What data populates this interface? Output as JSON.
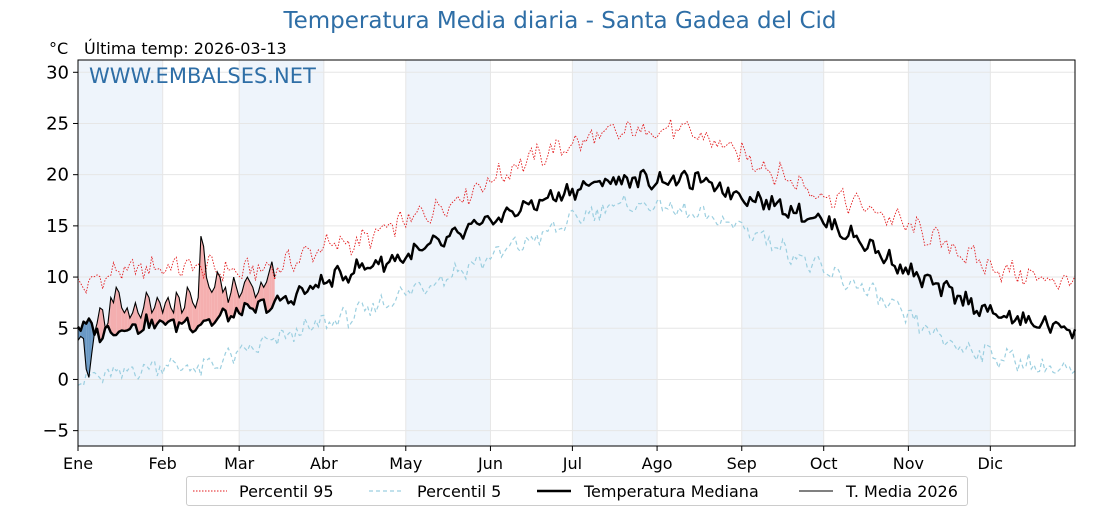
{
  "header": {
    "title": "Temperatura Media diaria - Santa Gadea del Cid",
    "unit": "°C",
    "last_temp_label": "Última temp:",
    "last_temp_date": "2026-03-13",
    "watermark": "WWW.EMBALSES.NET"
  },
  "colors": {
    "title": "#2e6ea6",
    "p95": "#e31a1c",
    "p5": "#9ccfe0",
    "median": "#000000",
    "current": "#000000",
    "above_fill": "#f4a6a6",
    "below_fill": "#5b8fbf",
    "month_band": "#eef4fb"
  },
  "chart_data": {
    "type": "line",
    "title": "Temperatura Media diaria - Santa Gadea del Cid",
    "ylabel": "°C",
    "ylim": [
      -6.5,
      31.2
    ],
    "yticks": [
      -5,
      0,
      5,
      10,
      15,
      20,
      25,
      30
    ],
    "xlim": [
      1,
      366
    ],
    "month_labels": [
      "Ene",
      "Feb",
      "Mar",
      "Abr",
      "May",
      "Jun",
      "Jul",
      "Ago",
      "Sep",
      "Oct",
      "Nov",
      "Dic"
    ],
    "month_start_days": [
      1,
      32,
      60,
      91,
      121,
      152,
      182,
      213,
      244,
      274,
      305,
      335
    ],
    "shaded_months": [
      0,
      2,
      4,
      6,
      8,
      10
    ],
    "grid": true,
    "legend_position": "bottom",
    "series": [
      {
        "name": "Percentil 95",
        "style": "dotted",
        "anchors": [
          [
            1,
            9.0
          ],
          [
            15,
            10.5
          ],
          [
            32,
            11.0
          ],
          [
            46,
            11.0
          ],
          [
            60,
            10.5
          ],
          [
            75,
            11.0
          ],
          [
            91,
            13.0
          ],
          [
            105,
            13.5
          ],
          [
            121,
            15.5
          ],
          [
            135,
            17.0
          ],
          [
            152,
            19.5
          ],
          [
            166,
            21.5
          ],
          [
            182,
            23.0
          ],
          [
            196,
            24.0
          ],
          [
            213,
            24.5
          ],
          [
            227,
            24.0
          ],
          [
            244,
            22.0
          ],
          [
            258,
            20.0
          ],
          [
            274,
            18.0
          ],
          [
            288,
            17.0
          ],
          [
            305,
            15.0
          ],
          [
            320,
            13.0
          ],
          [
            335,
            11.0
          ],
          [
            350,
            10.0
          ],
          [
            366,
            9.5
          ]
        ]
      },
      {
        "name": "Percentil 5",
        "style": "dashed",
        "anchors": [
          [
            1,
            0.0
          ],
          [
            15,
            0.5
          ],
          [
            32,
            1.5
          ],
          [
            46,
            1.0
          ],
          [
            60,
            2.5
          ],
          [
            75,
            4.0
          ],
          [
            91,
            5.5
          ],
          [
            105,
            6.5
          ],
          [
            121,
            8.5
          ],
          [
            135,
            10.0
          ],
          [
            152,
            12.0
          ],
          [
            166,
            13.5
          ],
          [
            182,
            15.5
          ],
          [
            196,
            17.0
          ],
          [
            213,
            17.0
          ],
          [
            227,
            16.0
          ],
          [
            244,
            15.0
          ],
          [
            258,
            13.0
          ],
          [
            274,
            10.5
          ],
          [
            288,
            9.0
          ],
          [
            305,
            6.0
          ],
          [
            320,
            3.5
          ],
          [
            335,
            2.5
          ],
          [
            350,
            1.5
          ],
          [
            366,
            0.5
          ]
        ]
      },
      {
        "name": "Temperatura Mediana",
        "style": "solid-thick",
        "anchors": [
          [
            1,
            5.5
          ],
          [
            10,
            4.5
          ],
          [
            15,
            5.0
          ],
          [
            32,
            5.5
          ],
          [
            46,
            5.5
          ],
          [
            60,
            6.5
          ],
          [
            75,
            7.5
          ],
          [
            91,
            9.5
          ],
          [
            105,
            11.0
          ],
          [
            121,
            12.0
          ],
          [
            135,
            13.5
          ],
          [
            152,
            15.5
          ],
          [
            166,
            17.0
          ],
          [
            182,
            18.5
          ],
          [
            196,
            19.5
          ],
          [
            213,
            19.5
          ],
          [
            227,
            19.5
          ],
          [
            244,
            18.0
          ],
          [
            258,
            17.0
          ],
          [
            274,
            15.5
          ],
          [
            288,
            13.5
          ],
          [
            305,
            10.5
          ],
          [
            320,
            8.5
          ],
          [
            335,
            6.5
          ],
          [
            350,
            5.5
          ],
          [
            366,
            5.0
          ]
        ]
      },
      {
        "name": "T. Media 2026",
        "style": "solid-thin",
        "points": [
          [
            1,
            3.8
          ],
          [
            2,
            4.2
          ],
          [
            3,
            4.0
          ],
          [
            4,
            1.0
          ],
          [
            5,
            0.2
          ],
          [
            6,
            2.5
          ],
          [
            7,
            4.5
          ],
          [
            8,
            5.5
          ],
          [
            9,
            7.0
          ],
          [
            10,
            6.8
          ],
          [
            11,
            5.0
          ],
          [
            12,
            5.5
          ],
          [
            13,
            8.0
          ],
          [
            14,
            7.5
          ],
          [
            15,
            9.0
          ],
          [
            16,
            8.5
          ],
          [
            17,
            7.0
          ],
          [
            18,
            6.5
          ],
          [
            19,
            7.0
          ],
          [
            20,
            6.0
          ],
          [
            21,
            6.5
          ],
          [
            22,
            7.5
          ],
          [
            23,
            6.5
          ],
          [
            24,
            6.0
          ],
          [
            25,
            7.0
          ],
          [
            26,
            8.5
          ],
          [
            27,
            8.0
          ],
          [
            28,
            6.5
          ],
          [
            29,
            7.0
          ],
          [
            30,
            8.0
          ],
          [
            31,
            7.5
          ],
          [
            32,
            6.5
          ],
          [
            33,
            7.5
          ],
          [
            34,
            8.0
          ],
          [
            35,
            7.0
          ],
          [
            36,
            6.5
          ],
          [
            37,
            8.5
          ],
          [
            38,
            8.0
          ],
          [
            39,
            6.5
          ],
          [
            40,
            7.0
          ],
          [
            41,
            9.0
          ],
          [
            42,
            8.5
          ],
          [
            43,
            7.5
          ],
          [
            44,
            7.0
          ],
          [
            45,
            8.0
          ],
          [
            46,
            14.0
          ],
          [
            47,
            13.0
          ],
          [
            48,
            10.0
          ],
          [
            49,
            9.0
          ],
          [
            50,
            8.5
          ],
          [
            51,
            9.0
          ],
          [
            52,
            10.5
          ],
          [
            53,
            10.0
          ],
          [
            54,
            8.5
          ],
          [
            55,
            9.0
          ],
          [
            56,
            7.5
          ],
          [
            57,
            8.5
          ],
          [
            58,
            10.0
          ],
          [
            59,
            9.0
          ],
          [
            60,
            8.0
          ],
          [
            61,
            8.5
          ],
          [
            62,
            9.5
          ],
          [
            63,
            10.0
          ],
          [
            64,
            9.5
          ],
          [
            65,
            9.0
          ],
          [
            66,
            8.0
          ],
          [
            67,
            8.5
          ],
          [
            68,
            9.5
          ],
          [
            69,
            9.0
          ],
          [
            70,
            9.5
          ],
          [
            71,
            10.5
          ],
          [
            72,
            11.5
          ],
          [
            73,
            10.0
          ]
        ]
      }
    ]
  },
  "legend": {
    "items": [
      "Percentil 95",
      "Percentil 5",
      "Temperatura Mediana",
      "T. Media 2026"
    ]
  }
}
